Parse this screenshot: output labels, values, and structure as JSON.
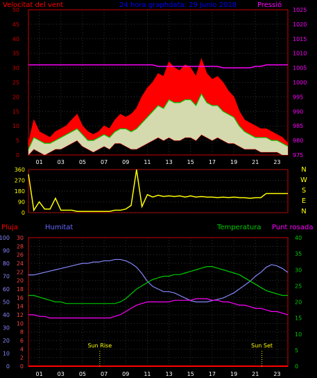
{
  "chart_data": [
    {
      "type": "line",
      "title": "24 hora graphdata:  29 Junio 2018",
      "left_axis_label": "Velocitat del vent",
      "right_axis_label": "Pressió",
      "y_left_ticks": [
        0,
        5,
        10,
        15,
        20,
        25,
        30,
        35,
        40,
        45,
        50
      ],
      "y_left_range": [
        0,
        50
      ],
      "y_right_ticks": [
        975,
        980,
        985,
        990,
        995,
        1000,
        1005,
        1010,
        1015,
        1020,
        1025
      ],
      "y_right_range": [
        975,
        1025
      ],
      "x_ticks": [
        "01",
        "03",
        "05",
        "07",
        "09",
        "11",
        "13",
        "15",
        "17",
        "19",
        "21",
        "23"
      ],
      "x_range_hours": [
        0,
        24
      ],
      "colors": {
        "gust": "#ff0000",
        "wind": "#ccffcc",
        "avg": "#00cc00",
        "pressure": "#ff00ff",
        "axis": "#cc0000"
      },
      "series": [
        {
          "kind": "band-max",
          "hours": [
            0,
            0.5,
            1,
            1.5,
            2,
            2.5,
            3,
            3.5,
            4,
            4.5,
            5,
            5.5,
            6,
            6.5,
            7,
            7.5,
            8,
            8.5,
            9,
            9.5,
            10,
            10.5,
            11,
            11.5,
            12,
            12.5,
            13,
            13.5,
            14,
            14.5,
            15,
            15.5,
            16,
            16.5,
            17,
            17.5,
            18,
            18.5,
            19,
            19.5,
            20,
            20.5,
            21,
            21.5,
            22,
            22.5,
            23,
            23.5,
            24
          ],
          "values": [
            4,
            12,
            8,
            7,
            6,
            8,
            9,
            10,
            12,
            14,
            10,
            8,
            7,
            8,
            10,
            9,
            12,
            14,
            13,
            14,
            16,
            20,
            23,
            25,
            28,
            27,
            32,
            30,
            29,
            31,
            30,
            27,
            33,
            28,
            26,
            27,
            25,
            22,
            20,
            15,
            12,
            11,
            10,
            9,
            9,
            8,
            7,
            6,
            4
          ]
        },
        {
          "kind": "band-min",
          "values": [
            0,
            2,
            1,
            0,
            1,
            2,
            2,
            3,
            4,
            5,
            3,
            2,
            1,
            2,
            3,
            2,
            4,
            4,
            3,
            2,
            2,
            3,
            4,
            5,
            6,
            5,
            6,
            5,
            5,
            6,
            6,
            5,
            7,
            6,
            5,
            6,
            5,
            4,
            4,
            3,
            2,
            2,
            2,
            1,
            1,
            1,
            1,
            0,
            0
          ]
        },
        {
          "kind": "average",
          "values": [
            2,
            6,
            5,
            4,
            4,
            5,
            6,
            7,
            8,
            9,
            7,
            5,
            5,
            6,
            7,
            6,
            8,
            9,
            9,
            8,
            9,
            11,
            13,
            15,
            17,
            16,
            19,
            18,
            18,
            19,
            19,
            17,
            21,
            18,
            17,
            17,
            15,
            14,
            13,
            10,
            8,
            7,
            6,
            6,
            6,
            5,
            5,
            4,
            3
          ]
        },
        {
          "kind": "pressure",
          "values": [
            1006,
            1006,
            1006,
            1006,
            1006,
            1006,
            1006,
            1006,
            1006,
            1006,
            1006,
            1006,
            1006,
            1006,
            1006,
            1006,
            1006,
            1006,
            1006,
            1006,
            1006,
            1006,
            1006,
            1006,
            1005.5,
            1005.5,
            1005.5,
            1005.5,
            1005.5,
            1005.5,
            1005.5,
            1005.5,
            1005.5,
            1005.5,
            1005.5,
            1005.5,
            1005,
            1005,
            1005,
            1005,
            1005,
            1005,
            1005.5,
            1005.5,
            1006,
            1006,
            1006,
            1006,
            1006
          ]
        }
      ]
    },
    {
      "type": "line",
      "right_letters": [
        "N",
        "W",
        "S",
        "E",
        "N"
      ],
      "y_ticks": [
        0,
        90,
        180,
        270,
        360
      ],
      "y_range": [
        0,
        360
      ],
      "x_range_hours": [
        0,
        24
      ],
      "colors": {
        "line": "#ffff00",
        "axis": "#cc0000"
      },
      "series": [
        {
          "kind": "direction",
          "hours": [
            0,
            0.5,
            1,
            1.5,
            2,
            2.5,
            3,
            3.5,
            4,
            4.5,
            5,
            5.5,
            6,
            6.5,
            7,
            7.5,
            8,
            8.5,
            9,
            9.5,
            10,
            10.5,
            11,
            11.5,
            12,
            12.5,
            13,
            13.5,
            14,
            14.5,
            15,
            15.5,
            16,
            16.5,
            17,
            17.5,
            18,
            18.5,
            19,
            19.5,
            20,
            20.5,
            21,
            21.5,
            22,
            22.5,
            23,
            23.5,
            24
          ],
          "values": [
            320,
            20,
            90,
            30,
            30,
            120,
            20,
            20,
            20,
            10,
            10,
            10,
            10,
            10,
            10,
            10,
            20,
            20,
            30,
            60,
            360,
            50,
            150,
            130,
            145,
            135,
            140,
            135,
            140,
            130,
            140,
            130,
            135,
            130,
            130,
            125,
            130,
            125,
            130,
            125,
            125,
            120,
            125,
            125,
            160,
            160,
            160,
            160,
            160
          ]
        }
      ]
    },
    {
      "type": "line",
      "labels": {
        "rain": "Pluja",
        "humidity": "Humitat",
        "temperature": "Temperatura",
        "dew": "Punt rosada"
      },
      "annotations": [
        "Sun Rise",
        "Sun Set"
      ],
      "annotation_hours": [
        6.6,
        21.6
      ],
      "humidity_ticks": [
        0,
        10,
        20,
        30,
        40,
        50,
        60,
        70,
        80,
        90,
        100
      ],
      "humidity_range": [
        0,
        100
      ],
      "rain_ticks": [
        0,
        2,
        4,
        6,
        8,
        10,
        12,
        14,
        16,
        18,
        20,
        22,
        24,
        26,
        28,
        30
      ],
      "rain_range": [
        0,
        30
      ],
      "temp_ticks": [
        0,
        5,
        10,
        15,
        20,
        25,
        30,
        35,
        40
      ],
      "temp_range": [
        0,
        40
      ],
      "x_ticks": [
        "01",
        "03",
        "05",
        "07",
        "09",
        "11",
        "13",
        "15",
        "17",
        "19",
        "21",
        "23"
      ],
      "x_range_hours": [
        0,
        24
      ],
      "colors": {
        "rain": "#ff0000",
        "humidity": "#8888ff",
        "temperature": "#00cc00",
        "dew": "#ff00ff",
        "axis": "#cc0000",
        "tick_left": "#ff4444",
        "tick_hum": "#8888ff",
        "tick_temp": "#00cc00",
        "annotation": "#ffff00"
      },
      "series": [
        {
          "kind": "humidity",
          "hours": [
            0,
            0.5,
            1,
            1.5,
            2,
            2.5,
            3,
            3.5,
            4,
            4.5,
            5,
            5.5,
            6,
            6.5,
            7,
            7.5,
            8,
            8.5,
            9,
            9.5,
            10,
            10.5,
            11,
            11.5,
            12,
            12.5,
            13,
            13.5,
            14,
            14.5,
            15,
            15.5,
            16,
            16.5,
            17,
            17.5,
            18,
            18.5,
            19,
            19.5,
            20,
            20.5,
            21,
            21.5,
            22,
            22.5,
            23,
            23.5,
            24
          ],
          "values": [
            71,
            71,
            72,
            73,
            74,
            75,
            76,
            77,
            78,
            79,
            80,
            80,
            81,
            81,
            82,
            82,
            83,
            83,
            82,
            80,
            77,
            72,
            66,
            62,
            60,
            58,
            58,
            57,
            55,
            53,
            51,
            50,
            50,
            50,
            51,
            52,
            53,
            55,
            57,
            60,
            63,
            66,
            70,
            73,
            77,
            79,
            78,
            76,
            73
          ]
        },
        {
          "kind": "temperature",
          "values": [
            22,
            22,
            21.5,
            21,
            20.5,
            20,
            20,
            19.5,
            19.5,
            19.5,
            19.5,
            19.5,
            19.5,
            19.5,
            19.5,
            19.5,
            19.5,
            20,
            21,
            22.5,
            24,
            25,
            26,
            27,
            27.5,
            28,
            28,
            28.5,
            28.5,
            29,
            29.5,
            30,
            30.5,
            31,
            31,
            30.5,
            30,
            29.5,
            29,
            28.5,
            27.5,
            26.5,
            25.5,
            24.5,
            23.5,
            23,
            22.5,
            22,
            22
          ]
        },
        {
          "kind": "dew",
          "values": [
            16,
            16,
            15.5,
            15.5,
            15,
            15,
            15,
            15,
            15,
            15,
            15,
            15,
            15,
            15,
            15,
            15,
            15.5,
            16,
            17,
            18,
            19,
            19.5,
            20,
            20,
            20,
            20,
            20,
            20.5,
            20.5,
            20.5,
            20.5,
            21,
            21,
            21,
            20.5,
            20.5,
            20,
            20,
            19.5,
            19,
            19,
            18.5,
            18,
            18,
            17.5,
            17,
            17,
            16.5,
            16
          ]
        },
        {
          "kind": "rain",
          "values": [
            0,
            0,
            0,
            0,
            0,
            0,
            0,
            0,
            0,
            0,
            0,
            0,
            0,
            0,
            0,
            0,
            0,
            0,
            0,
            0,
            0,
            0,
            0,
            0,
            0,
            0,
            0,
            0,
            0,
            0,
            0,
            0,
            0,
            0,
            0,
            0,
            0,
            0,
            0,
            0,
            0,
            0,
            0,
            0,
            0,
            0,
            0,
            0,
            0
          ]
        }
      ]
    }
  ]
}
